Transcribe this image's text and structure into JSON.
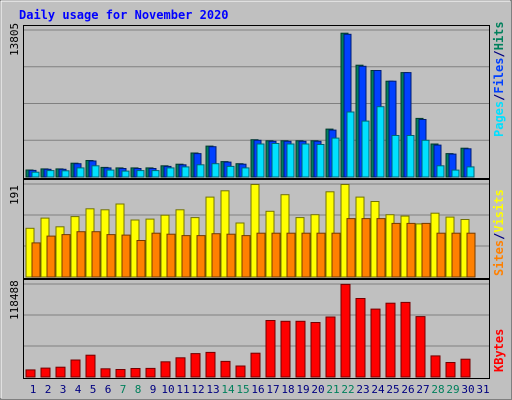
{
  "chart_data": {
    "type": "bar",
    "title": "Daily usage for November 2020",
    "x": [
      "1",
      "2",
      "3",
      "4",
      "5",
      "6",
      "7",
      "8",
      "9",
      "10",
      "11",
      "12",
      "13",
      "14",
      "15",
      "16",
      "17",
      "18",
      "19",
      "20",
      "21",
      "22",
      "23",
      "24",
      "25",
      "26",
      "27",
      "28",
      "29",
      "30",
      "31"
    ],
    "weekend_days": [
      7,
      8,
      14,
      15,
      21,
      22,
      28,
      29
    ],
    "panels": [
      {
        "name": "hits-files-pages",
        "ymax_label": "13805",
        "ymax": 13805,
        "side_labels": [
          {
            "text": "Pages",
            "color": "#00e0ff"
          },
          {
            "text": "/",
            "color": "#000080"
          },
          {
            "text": "Files",
            "color": "#0040ff"
          },
          {
            "text": "/",
            "color": "#000080"
          },
          {
            "text": "Hits",
            "color": "#00805c"
          }
        ],
        "series": [
          {
            "name": "Hits",
            "color": "#00805c",
            "values": [
              660,
              760,
              760,
              1300,
              1550,
              900,
              850,
              850,
              850,
              1050,
              1200,
              2250,
              2900,
              1450,
              1250,
              3500,
              3400,
              3400,
              3400,
              3400,
              4500,
              13500,
              10500,
              10000,
              9000,
              9800,
              5500,
              3100,
              2200,
              2700,
              0
            ]
          },
          {
            "name": "Files",
            "color": "#0040ff",
            "values": [
              620,
              720,
              720,
              1250,
              1500,
              850,
              800,
              800,
              800,
              1000,
              1150,
              2200,
              2850,
              1400,
              1200,
              3450,
              3350,
              3350,
              3350,
              3350,
              4400,
              13400,
              10400,
              10000,
              9000,
              9800,
              5400,
              3000,
              2150,
              2650,
              0
            ]
          },
          {
            "name": "Pages",
            "color": "#00e0ff",
            "values": [
              450,
              600,
              580,
              850,
              1050,
              650,
              550,
              600,
              600,
              850,
              950,
              1150,
              1250,
              1000,
              850,
              3100,
              3150,
              3100,
              3100,
              3050,
              3650,
              6100,
              5250,
              6600,
              3900,
              3900,
              3450,
              1050,
              650,
              950,
              0
            ]
          }
        ]
      },
      {
        "name": "visits-sites",
        "ymax_label": "191",
        "ymax": 191,
        "side_labels": [
          {
            "text": "Sites",
            "color": "#ff8000"
          },
          {
            "text": "/",
            "color": "#000080"
          },
          {
            "text": "Visits",
            "color": "#ffff00"
          }
        ],
        "series": [
          {
            "name": "Visits",
            "color": "#ffff00",
            "values": [
              100,
              121,
              103,
              124,
              140,
              138,
              150,
              117,
              119,
              127,
              138,
              122,
              164,
              177,
              111,
              190,
              135,
              169,
              122,
              128,
              175,
              190,
              164,
              155,
              128,
              125,
              109,
              131,
              123,
              118,
              0
            ]
          },
          {
            "name": "Sites",
            "color": "#ff8000",
            "values": [
              70,
              84,
              87,
              93,
              93,
              87,
              86,
              75,
              90,
              88,
              85,
              85,
              89,
              88,
              85,
              90,
              90,
              90,
              90,
              90,
              90,
              120,
              120,
              120,
              110,
              110,
              110,
              90,
              90,
              90,
              0
            ]
          }
        ]
      },
      {
        "name": "kbytes",
        "ymax_label": "118488",
        "ymax": 118488,
        "side_labels": [
          {
            "text": "KBytes",
            "color": "#ff0000"
          }
        ],
        "series": [
          {
            "name": "KBytes",
            "color": "#ff0000",
            "values": [
              9000,
              11300,
              12500,
              21700,
              27800,
              10400,
              9600,
              10800,
              10900,
              19400,
              24400,
              29800,
              31300,
              19900,
              14000,
              30300,
              72000,
              71000,
              71000,
              69500,
              76500,
              118000,
              100000,
              86500,
              94000,
              95000,
              77000,
              26900,
              18500,
              22700,
              0
            ]
          }
        ]
      }
    ]
  }
}
